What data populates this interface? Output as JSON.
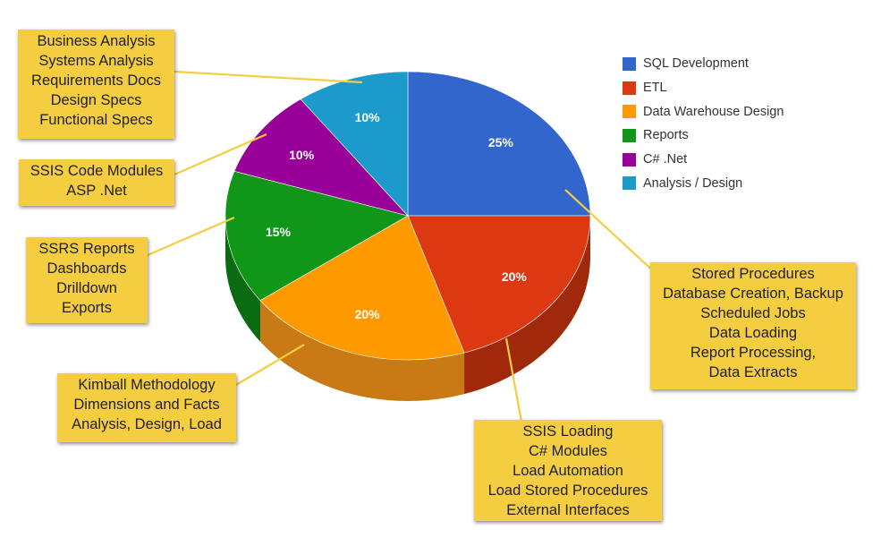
{
  "chart_data": {
    "type": "pie",
    "slices": [
      {
        "name": "SQL Development",
        "value": 25,
        "label": "25%",
        "color": "#3366cc",
        "side": "#234a99"
      },
      {
        "name": "ETL",
        "value": 20,
        "label": "20%",
        "color": "#dc3912",
        "side": "#a0290c"
      },
      {
        "name": "Data Warehouse Design",
        "value": 20,
        "label": "20%",
        "color": "#ff9900",
        "side": "#c97a14"
      },
      {
        "name": "Reports",
        "value": 15,
        "label": "15%",
        "color": "#109618",
        "side": "#0a6b10"
      },
      {
        "name": "C# .Net",
        "value": 10,
        "label": "10%",
        "color": "#990099",
        "side": "#6a006a"
      },
      {
        "name": "Analysis / Design",
        "value": 10,
        "label": "10%",
        "color": "#1b9acb",
        "side": "#13709a"
      }
    ],
    "legend_position": "right"
  },
  "callouts": [
    {
      "id": "analysis",
      "lines": [
        "Business Analysis",
        "Systems Analysis",
        "Requirements Docs",
        "Design Specs",
        "Functional Specs"
      ]
    },
    {
      "id": "csharp",
      "lines": [
        "SSIS Code Modules",
        "ASP .Net"
      ]
    },
    {
      "id": "reports",
      "lines": [
        "SSRS Reports",
        "Dashboards",
        "Drilldown",
        "Exports"
      ]
    },
    {
      "id": "dw",
      "lines": [
        "Kimball Methodology",
        "Dimensions and Facts",
        "Analysis, Design, Load"
      ]
    },
    {
      "id": "sql",
      "lines": [
        "Stored Procedures",
        "Database Creation, Backup",
        "Scheduled Jobs",
        "Data Loading",
        "Report Processing,",
        "Data Extracts"
      ]
    },
    {
      "id": "etl",
      "lines": [
        "SSIS Loading",
        "C# Modules",
        "Load Automation",
        "Load Stored Procedures",
        "External Interfaces"
      ]
    }
  ],
  "callout_color": "#f4cd41"
}
